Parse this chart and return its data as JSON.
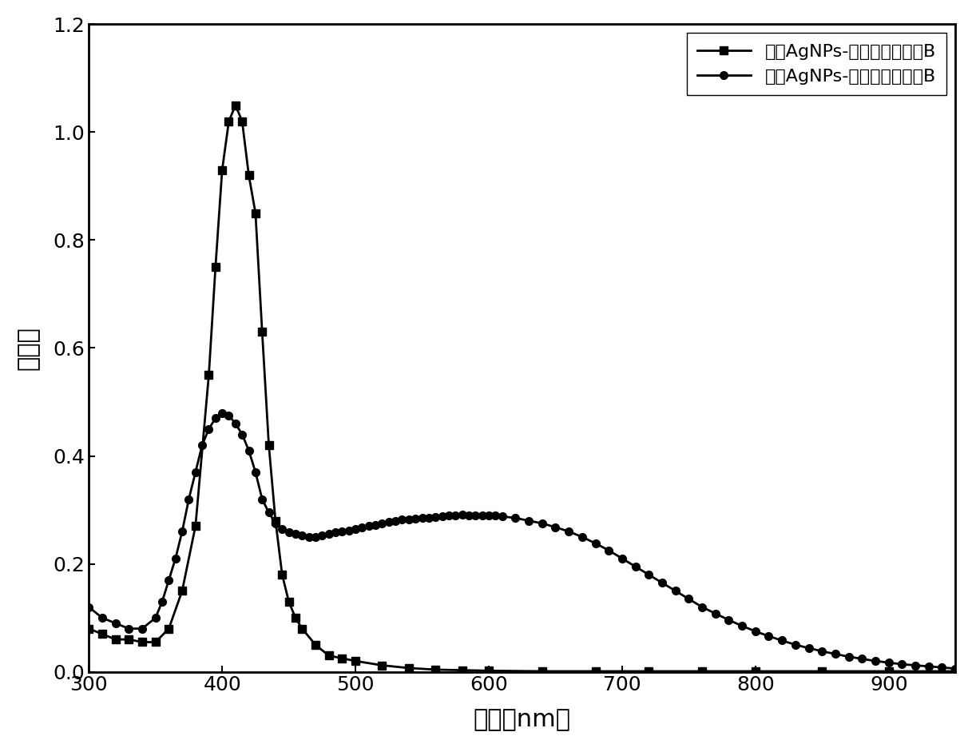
{
  "title": "",
  "xlabel": "波长（nm）",
  "ylabel": "吸光度",
  "xlim": [
    300,
    950
  ],
  "ylim": [
    0,
    1.2
  ],
  "xticks": [
    300,
    400,
    500,
    600,
    700,
    800,
    900
  ],
  "yticks": [
    0.0,
    0.2,
    0.4,
    0.6,
    0.8,
    1.0,
    1.2
  ],
  "legend1": "分散AgNPs-异硫氰酸罗丹明B",
  "legend2": "聚集AgNPs-异硫氰酸罗丹明B",
  "line_color": "#000000",
  "background_color": "#ffffff",
  "series1_x": [
    300,
    310,
    320,
    330,
    340,
    350,
    360,
    370,
    380,
    390,
    395,
    400,
    405,
    410,
    415,
    420,
    425,
    430,
    435,
    440,
    445,
    450,
    455,
    460,
    470,
    480,
    490,
    500,
    520,
    540,
    560,
    580,
    600,
    640,
    680,
    720,
    760,
    800,
    850,
    900,
    950
  ],
  "series1_y": [
    0.08,
    0.07,
    0.06,
    0.06,
    0.055,
    0.055,
    0.08,
    0.15,
    0.27,
    0.55,
    0.75,
    0.93,
    1.02,
    1.05,
    1.02,
    0.92,
    0.85,
    0.63,
    0.42,
    0.28,
    0.18,
    0.13,
    0.1,
    0.08,
    0.05,
    0.03,
    0.025,
    0.02,
    0.012,
    0.007,
    0.004,
    0.003,
    0.002,
    0.001,
    0.001,
    0.001,
    0.001,
    0.001,
    0.001,
    0.001,
    0.001
  ],
  "series2_x": [
    300,
    310,
    320,
    330,
    340,
    350,
    355,
    360,
    365,
    370,
    375,
    380,
    385,
    390,
    395,
    400,
    405,
    410,
    415,
    420,
    425,
    430,
    435,
    440,
    445,
    450,
    455,
    460,
    465,
    470,
    475,
    480,
    485,
    490,
    495,
    500,
    505,
    510,
    515,
    520,
    525,
    530,
    535,
    540,
    545,
    550,
    555,
    560,
    565,
    570,
    575,
    580,
    585,
    590,
    595,
    600,
    605,
    610,
    620,
    630,
    640,
    650,
    660,
    670,
    680,
    690,
    700,
    710,
    720,
    730,
    740,
    750,
    760,
    770,
    780,
    790,
    800,
    810,
    820,
    830,
    840,
    850,
    860,
    870,
    880,
    890,
    900,
    910,
    920,
    930,
    940,
    950
  ],
  "series2_y": [
    0.12,
    0.1,
    0.09,
    0.08,
    0.08,
    0.1,
    0.13,
    0.17,
    0.21,
    0.26,
    0.32,
    0.37,
    0.42,
    0.45,
    0.47,
    0.48,
    0.475,
    0.46,
    0.44,
    0.41,
    0.37,
    0.32,
    0.295,
    0.275,
    0.265,
    0.258,
    0.255,
    0.252,
    0.25,
    0.25,
    0.252,
    0.255,
    0.258,
    0.26,
    0.262,
    0.265,
    0.268,
    0.27,
    0.272,
    0.275,
    0.278,
    0.28,
    0.282,
    0.283,
    0.284,
    0.285,
    0.286,
    0.287,
    0.288,
    0.289,
    0.29,
    0.291,
    0.29,
    0.29,
    0.29,
    0.29,
    0.289,
    0.288,
    0.285,
    0.28,
    0.275,
    0.268,
    0.26,
    0.25,
    0.238,
    0.225,
    0.21,
    0.195,
    0.18,
    0.165,
    0.15,
    0.135,
    0.12,
    0.108,
    0.096,
    0.085,
    0.075,
    0.066,
    0.058,
    0.05,
    0.044,
    0.038,
    0.033,
    0.028,
    0.024,
    0.02,
    0.017,
    0.014,
    0.012,
    0.01,
    0.008,
    0.006
  ]
}
